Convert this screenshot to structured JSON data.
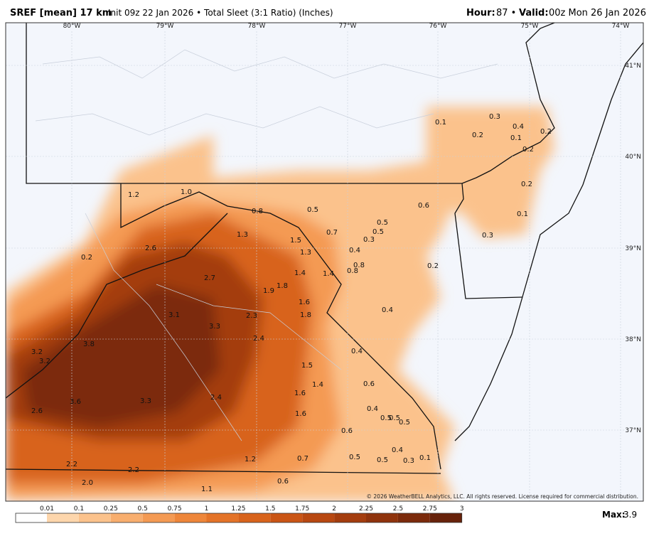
{
  "header": {
    "model": "SREF [mean] 17 km",
    "description": "Init 09z 22 Jan 2026 • Total Sleet (3:1 Ratio) (Inches)",
    "hour_label": "Hour:",
    "hour_value": "87 •",
    "valid_label": "Valid:",
    "valid_value": "00z Mon 26 Jan 2026"
  },
  "map": {
    "lon_labels": [
      "80°W",
      "79°W",
      "78°W",
      "77°W",
      "76°W",
      "75°W",
      "74°W"
    ],
    "lat_labels": [
      "41°N",
      "40°N",
      "39°N",
      "38°N",
      "37°N"
    ],
    "value_labels": [
      "0.1",
      "0.3",
      "0.4",
      "0.2",
      "0.1",
      "0.2",
      "0.2",
      "0.2",
      "0.1",
      "0.3",
      "1.2",
      "1.0",
      "0.8",
      "0.5",
      "0.6",
      "0.5",
      "0.7",
      "0.5",
      "0.3",
      "1.3",
      "1.5",
      "2.6",
      "0.2",
      "1.3",
      "0.4",
      "0.8",
      "0.8",
      "0.2",
      "1.4",
      "1.4",
      "2.7",
      "1.8",
      "1.9",
      "1.6",
      "1.8",
      "3.1",
      "0.4",
      "2.3",
      "3.3",
      "2.4",
      "3.8",
      "0.4",
      "3.2",
      "3.2",
      "1.5",
      "1.4",
      "0.6",
      "1.6",
      "2.4",
      "3.6",
      "3.3",
      "2.6",
      "0.4",
      "1.6",
      "0.5",
      "0.5",
      "0.5",
      "0.6",
      "0.4",
      "0.7",
      "1.2",
      "0.5",
      "0.5",
      "0.3",
      "0.1",
      "2.2",
      "2.2",
      "2.0",
      "1.1",
      "0.6"
    ],
    "copyright": "© 2026 WeatherBELL Analytics, LLC. All rights reserved. License required for commercial distribution."
  },
  "colorbar": {
    "ticks": [
      "0.01",
      "0.1",
      "0.25",
      "0.5",
      "0.75",
      "1",
      "1.25",
      "1.5",
      "1.75",
      "2",
      "2.25",
      "2.5",
      "2.75",
      "3"
    ],
    "colors": [
      "#ffffff",
      "#fdd6ac",
      "#fbc28c",
      "#f8ae6e",
      "#f49a53",
      "#ee863a",
      "#e47328",
      "#d8631b",
      "#ca5515",
      "#b84811",
      "#a43d0e",
      "#8f330c",
      "#7b2a0b",
      "#67220a"
    ],
    "max_label": "Max:",
    "max_value": "3.9"
  }
}
